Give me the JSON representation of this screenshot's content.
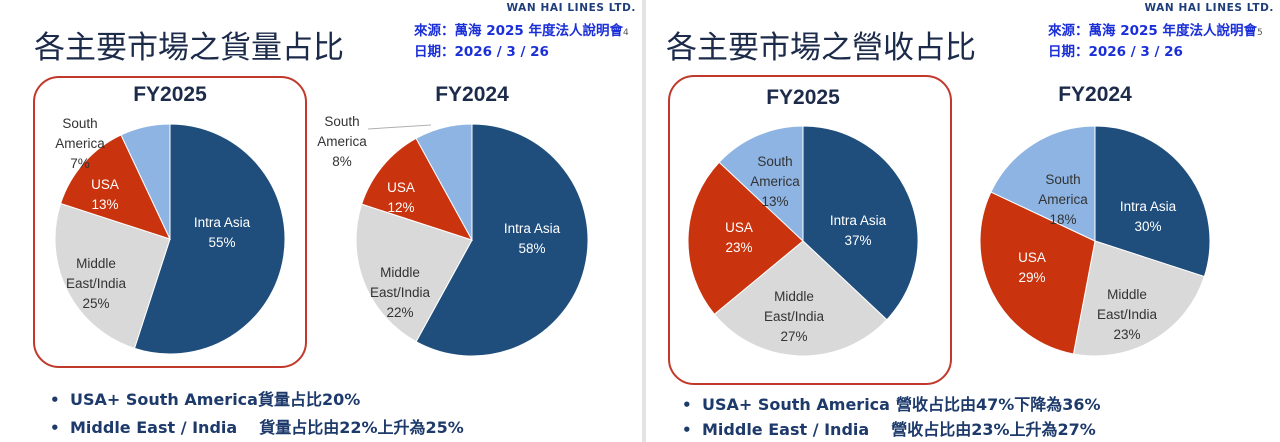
{
  "brand": "WAN HAI LINES LTD.",
  "slides": [
    {
      "title": "各主要市場之貨量占比",
      "source": "來源：萬海 2025 年度法人說明會",
      "date": "日期：2026 / 3 / 26",
      "page_no": "4",
      "bullets": [
        {
          "a": "USA+ South America",
          "b": "貨量占比20%"
        },
        {
          "a": "Middle East / India",
          "b": "貨量占比由22%上升為25%"
        }
      ]
    },
    {
      "title": "各主要市場之營收占比",
      "source": "來源：萬海 2025 年度法人說明會",
      "date": "日期：2026 / 3 / 26",
      "page_no": "5",
      "bullets": [
        {
          "a": "USA+ South America",
          "b": "營收占比由47%下降為36%"
        },
        {
          "a": "Middle East / India",
          "b": "營收占比由23%上升為27%"
        }
      ]
    }
  ],
  "colors": {
    "Intra Asia": "#1f4e7c",
    "Middle East/India": "#d9d9d9",
    "USA": "#c9340f",
    "South America": "#8db4e2",
    "highlight": "#c0392b"
  },
  "chart_data": [
    {
      "type": "pie",
      "title": "FY2025",
      "slices": [
        {
          "label": "Intra Asia",
          "value": 55,
          "text": "55%"
        },
        {
          "label": "Middle East/India",
          "value": 25,
          "text": "25%"
        },
        {
          "label": "USA",
          "value": 13,
          "text": "13%"
        },
        {
          "label": "South America",
          "value": 7,
          "text": "7%"
        }
      ]
    },
    {
      "type": "pie",
      "title": "FY2024",
      "slices": [
        {
          "label": "Intra Asia",
          "value": 58,
          "text": "58%"
        },
        {
          "label": "Middle East/India",
          "value": 22,
          "text": "22%"
        },
        {
          "label": "USA",
          "value": 12,
          "text": "12%"
        },
        {
          "label": "South America",
          "value": 8,
          "text": "8%"
        }
      ]
    },
    {
      "type": "pie",
      "title": "FY2025",
      "slices": [
        {
          "label": "Intra Asia",
          "value": 37,
          "text": "37%"
        },
        {
          "label": "Middle East/India",
          "value": 27,
          "text": "27%"
        },
        {
          "label": "USA",
          "value": 23,
          "text": "23%"
        },
        {
          "label": "South America",
          "value": 13,
          "text": "13%"
        }
      ]
    },
    {
      "type": "pie",
      "title": "FY2024",
      "slices": [
        {
          "label": "Intra Asia",
          "value": 30,
          "text": "30%"
        },
        {
          "label": "Middle East/India",
          "value": 23,
          "text": "23%"
        },
        {
          "label": "USA",
          "value": 29,
          "text": "29%"
        },
        {
          "label": "South America",
          "value": 18,
          "text": "18%"
        }
      ]
    }
  ]
}
